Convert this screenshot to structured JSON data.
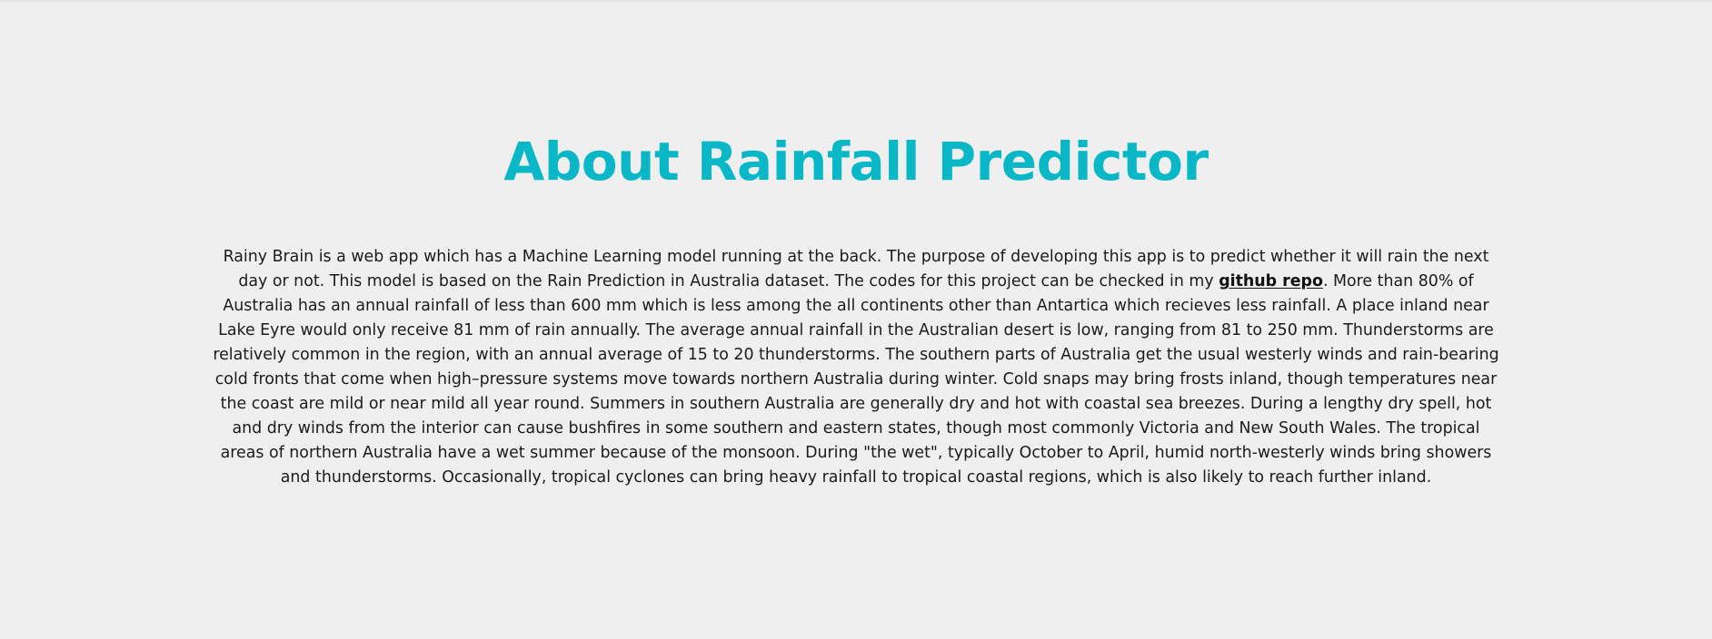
{
  "about": {
    "title": "About Rainfall Predictor",
    "description_before_link": "Rainy Brain is a web app which has a Machine Learning model running at the back. The purpose of developing this app is to predict whether it will rain the next day or not. This model is based on the Rain Prediction in Australia dataset. The codes for this project can be checked in my ",
    "link_text": "github repo",
    "description_after_link": ". More than 80% of Australia has an annual rainfall of less than 600 mm which is less among the all continents other than Antartica which recieves less rainfall. A place inland near Lake Eyre would only receive 81 mm of rain annually. The average annual rainfall in the Australian desert is low, ranging from 81 to 250 mm. Thunderstorms are relatively common in the region, with an annual average of 15 to 20 thunderstorms. The southern parts of Australia get the usual westerly winds and rain-bearing cold fronts that come when high–pressure systems move towards northern Australia during winter. Cold snaps may bring frosts inland, though temperatures near the coast are mild or near mild all year round. Summers in southern Australia are generally dry and hot with coastal sea breezes. During a lengthy dry spell, hot and dry winds from the interior can cause bushfires in some southern and eastern states, though most commonly Victoria and New South Wales. The tropical areas of northern Australia have a wet summer because of the monsoon. During \"the wet\", typically October to April, humid north-westerly winds bring showers and thunderstorms. Occasionally, tropical cyclones can bring heavy rainfall to tropical coastal regions, which is also likely to reach further inland."
  },
  "colors": {
    "background": "#efefef",
    "title": "#0ab7c6",
    "text": "#1b1b1b"
  }
}
